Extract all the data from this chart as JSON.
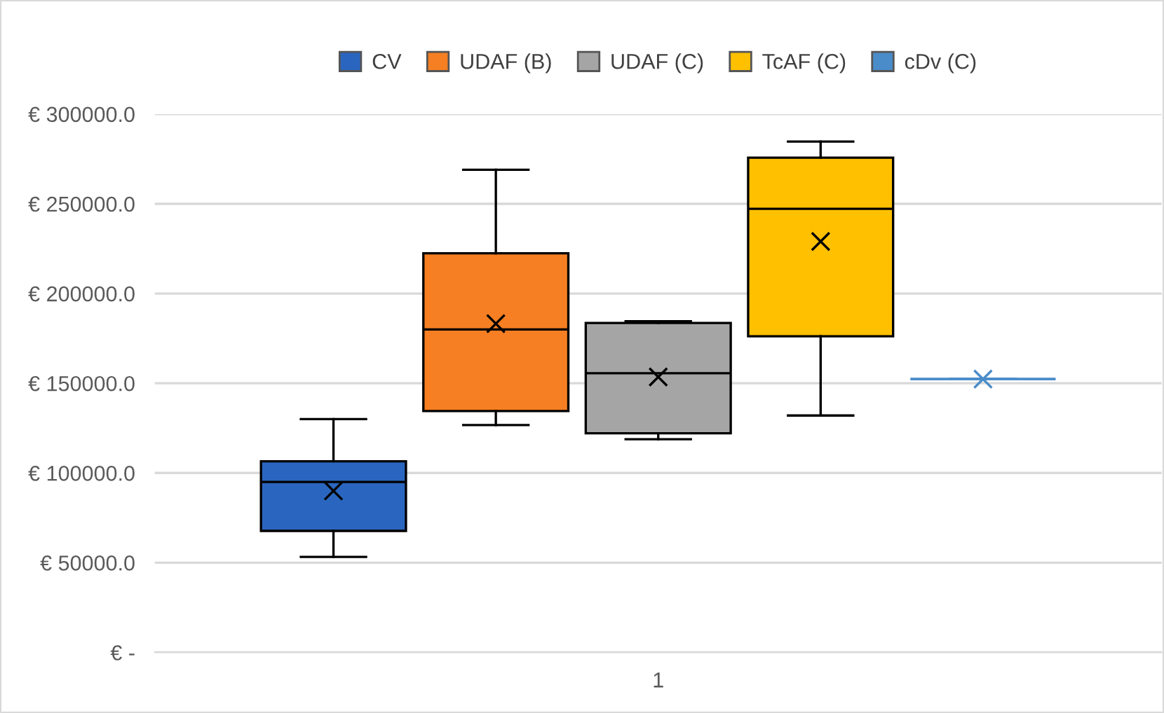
{
  "chart_data": {
    "type": "box",
    "categories": [
      "1"
    ],
    "series": [
      {
        "name": "CV",
        "color": "#2a66bf",
        "boxes": [
          {
            "low": 53200,
            "q1": 67700,
            "median": 95000,
            "q3": 106500,
            "high": 130000,
            "mean": 90000
          }
        ]
      },
      {
        "name": "UDAF (B)",
        "color": "#f57f22",
        "boxes": [
          {
            "low": 126700,
            "q1": 134500,
            "median": 180000,
            "q3": 222400,
            "high": 269000,
            "mean": 183200
          }
        ]
      },
      {
        "name": "UDAF (C)",
        "color": "#a5a5a5",
        "boxes": [
          {
            "low": 118800,
            "q1": 122100,
            "median": 155600,
            "q3": 183600,
            "high": 184500,
            "mean": 153500
          }
        ]
      },
      {
        "name": "TcAF (C)",
        "color": "#ffc000",
        "boxes": [
          {
            "low": 132000,
            "q1": 176200,
            "median": 247200,
            "q3": 275700,
            "high": 284700,
            "mean": 229000
          }
        ]
      },
      {
        "name": "cDv (C)",
        "color": "#4a8cc9",
        "boxes": [
          {
            "low": 152300,
            "q1": 152300,
            "median": 152300,
            "q3": 152300,
            "high": 152300,
            "mean": 152300
          }
        ]
      }
    ],
    "ylim": [
      0,
      300000
    ],
    "yticks": [
      {
        "value": 0,
        "label": "€ -"
      },
      {
        "value": 50000,
        "label": "€ 50000.0"
      },
      {
        "value": 100000,
        "label": "€ 100000.0"
      },
      {
        "value": 150000,
        "label": "€ 150000.0"
      },
      {
        "value": 200000,
        "label": "€ 200000.0"
      },
      {
        "value": 250000,
        "label": "€ 250000.0"
      },
      {
        "value": 300000,
        "label": "€ 300000.0"
      }
    ],
    "grid": "y",
    "legend": "top",
    "marker": "cross"
  }
}
